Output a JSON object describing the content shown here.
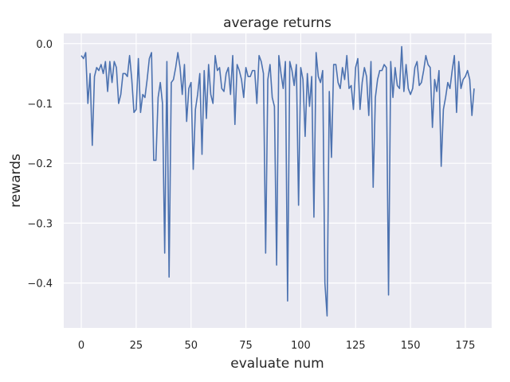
{
  "chart_data": {
    "type": "line",
    "title": "average returns",
    "xlabel": "evaluate num",
    "ylabel": "rewards",
    "xlim": [
      -8,
      187
    ],
    "ylim": [
      -0.475,
      0.017
    ],
    "grid": true,
    "x_ticks": [
      "0",
      "25",
      "50",
      "75",
      "100",
      "125",
      "150",
      "175"
    ],
    "x_tick_values": [
      0,
      25,
      50,
      75,
      100,
      125,
      150,
      175
    ],
    "y_ticks": [
      "0.0",
      "−0.1",
      "−0.2",
      "−0.3",
      "−0.4"
    ],
    "y_tick_values": [
      0.0,
      -0.1,
      -0.2,
      -0.3,
      -0.4
    ],
    "colors": {
      "background": "#eaeaf2",
      "grid": "#ffffff",
      "line": "#4c72b0"
    },
    "series": [
      {
        "values": [
          -0.02,
          -0.025,
          -0.015,
          -0.1,
          -0.05,
          -0.17,
          -0.055,
          -0.04,
          -0.045,
          -0.035,
          -0.05,
          -0.03,
          -0.08,
          -0.03,
          -0.065,
          -0.03,
          -0.04,
          -0.1,
          -0.085,
          -0.05,
          -0.05,
          -0.055,
          -0.02,
          -0.06,
          -0.115,
          -0.11,
          -0.025,
          -0.115,
          -0.085,
          -0.09,
          -0.06,
          -0.025,
          -0.015,
          -0.195,
          -0.195,
          -0.09,
          -0.065,
          -0.1,
          -0.35,
          -0.03,
          -0.39,
          -0.065,
          -0.06,
          -0.04,
          -0.015,
          -0.04,
          -0.085,
          -0.035,
          -0.13,
          -0.075,
          -0.065,
          -0.21,
          -0.11,
          -0.085,
          -0.05,
          -0.185,
          -0.045,
          -0.125,
          -0.035,
          -0.085,
          -0.1,
          -0.02,
          -0.045,
          -0.04,
          -0.075,
          -0.08,
          -0.05,
          -0.04,
          -0.085,
          -0.02,
          -0.135,
          -0.035,
          -0.045,
          -0.06,
          -0.09,
          -0.04,
          -0.055,
          -0.055,
          -0.045,
          -0.045,
          -0.1,
          -0.02,
          -0.03,
          -0.05,
          -0.35,
          -0.06,
          -0.035,
          -0.09,
          -0.105,
          -0.37,
          -0.02,
          -0.05,
          -0.075,
          -0.03,
          -0.43,
          -0.03,
          -0.045,
          -0.07,
          -0.035,
          -0.27,
          -0.04,
          -0.06,
          -0.155,
          -0.05,
          -0.105,
          -0.055,
          -0.29,
          -0.015,
          -0.055,
          -0.065,
          -0.045,
          -0.4,
          -0.455,
          -0.08,
          -0.19,
          -0.035,
          -0.035,
          -0.065,
          -0.075,
          -0.04,
          -0.06,
          -0.02,
          -0.075,
          -0.07,
          -0.11,
          -0.04,
          -0.025,
          -0.11,
          -0.065,
          -0.04,
          -0.055,
          -0.12,
          -0.03,
          -0.24,
          -0.09,
          -0.06,
          -0.045,
          -0.045,
          -0.035,
          -0.04,
          -0.42,
          -0.03,
          -0.09,
          -0.04,
          -0.07,
          -0.075,
          -0.005,
          -0.08,
          -0.035,
          -0.075,
          -0.085,
          -0.075,
          -0.04,
          -0.03,
          -0.07,
          -0.065,
          -0.045,
          -0.02,
          -0.035,
          -0.04,
          -0.14,
          -0.06,
          -0.08,
          -0.045,
          -0.205,
          -0.11,
          -0.09,
          -0.065,
          -0.075,
          -0.045,
          -0.02,
          -0.115,
          -0.03,
          -0.075,
          -0.06,
          -0.055,
          -0.045,
          -0.06,
          -0.12,
          -0.075
        ]
      }
    ]
  }
}
